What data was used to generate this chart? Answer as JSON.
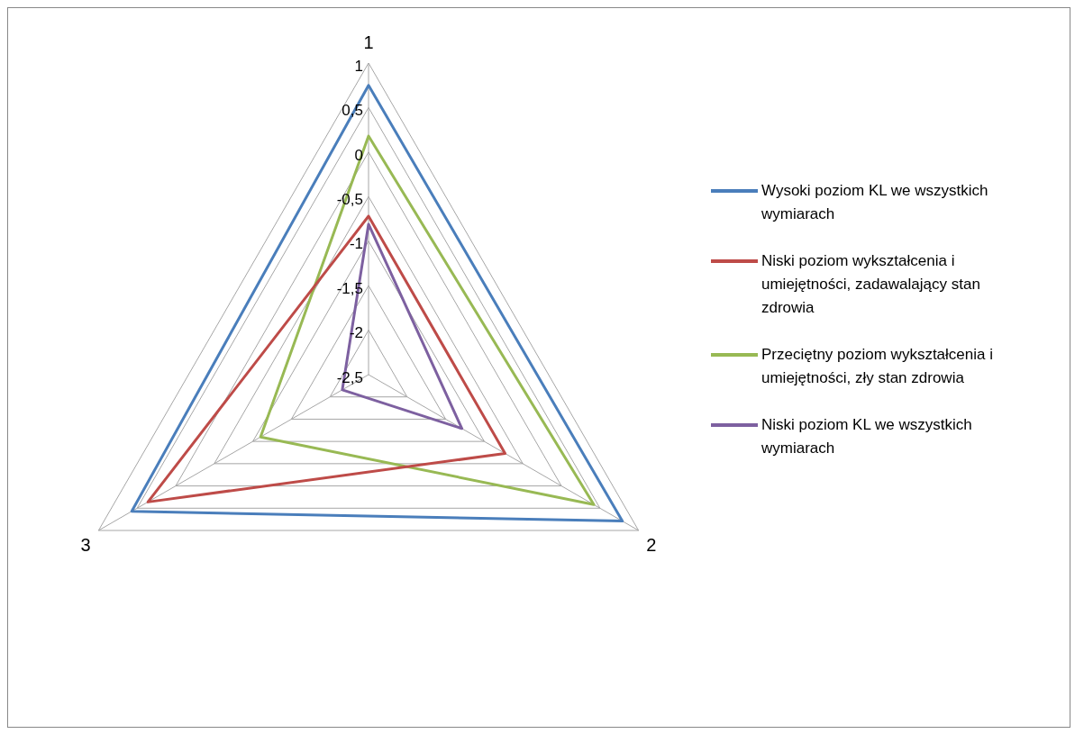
{
  "chart_data": {
    "type": "radar",
    "categories": [
      "1",
      "2",
      "3"
    ],
    "series": [
      {
        "name": "Wysoki poziom KL we wszystkich wymiarach",
        "color": "#4a7ebb",
        "values": [
          0.75,
          0.79,
          0.57
        ]
      },
      {
        "name": "Niski poziom wykształcenia i umiejętności, zadawalający stan zdrowia",
        "color": "#be4b48",
        "values": [
          -0.72,
          -0.73,
          0.36
        ]
      },
      {
        "name": "Przeciętny poziom wykształcenia i umiejętności, zły stan zdrowia",
        "color": "#98b954",
        "values": [
          0.18,
          0.42,
          -1.1
        ]
      },
      {
        "name": "Niski poziom KL we wszystkich wymiarach",
        "color": "#7d60a0",
        "values": [
          -0.81,
          -1.29,
          -2.16
        ]
      }
    ],
    "ylim": [
      -2.5,
      1
    ],
    "yticks": [
      {
        "value": -2.5,
        "label": "-2,5"
      },
      {
        "value": -2,
        "label": "-2"
      },
      {
        "value": -1.5,
        "label": "-1,5"
      },
      {
        "value": -1,
        "label": "-1"
      },
      {
        "value": -0.5,
        "label": "-0,5"
      },
      {
        "value": 0,
        "label": "0"
      },
      {
        "value": 0.5,
        "label": "0,5"
      },
      {
        "value": 1,
        "label": "1"
      }
    ],
    "grid": true,
    "legend": "right",
    "marker": "none",
    "line_style": "solid"
  }
}
